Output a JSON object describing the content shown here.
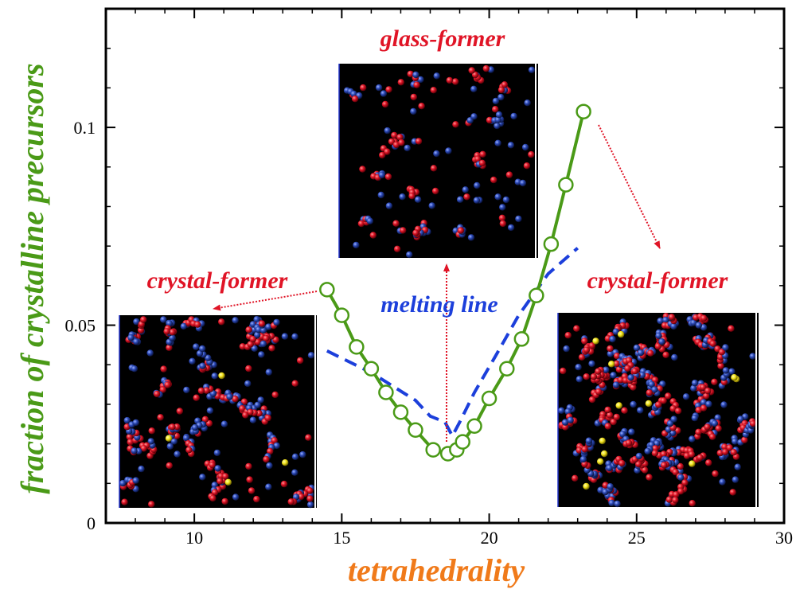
{
  "chart_data": {
    "type": "line",
    "xlabel": "tetrahedrality",
    "ylabel": "fraction of crystalline precursors",
    "xlim": [
      7,
      30
    ],
    "ylim": [
      0,
      0.13
    ],
    "x_ticks": [
      10,
      15,
      20,
      25,
      30
    ],
    "y_ticks": [
      0,
      0.05,
      0.1
    ],
    "x_tick_labels": [
      "10",
      "15",
      "20",
      "25",
      "30"
    ],
    "y_tick_labels": [
      "0",
      "0.05",
      "0.1"
    ],
    "grid": false,
    "series": [
      {
        "style": "solid line with open circle markers",
        "color": "#4a9a17",
        "points": [
          {
            "x": 14.5,
            "y": 0.059
          },
          {
            "x": 15.0,
            "y": 0.0525
          },
          {
            "x": 15.5,
            "y": 0.0445
          },
          {
            "x": 16.0,
            "y": 0.039
          },
          {
            "x": 16.5,
            "y": 0.033
          },
          {
            "x": 17.0,
            "y": 0.028
          },
          {
            "x": 17.5,
            "y": 0.0235
          },
          {
            "x": 18.1,
            "y": 0.0185
          },
          {
            "x": 18.6,
            "y": 0.0175
          },
          {
            "x": 18.9,
            "y": 0.0185
          },
          {
            "x": 19.1,
            "y": 0.0205
          },
          {
            "x": 19.5,
            "y": 0.0245
          },
          {
            "x": 20.0,
            "y": 0.0315
          },
          {
            "x": 20.6,
            "y": 0.039
          },
          {
            "x": 21.1,
            "y": 0.0465
          },
          {
            "x": 21.6,
            "y": 0.0575
          },
          {
            "x": 22.1,
            "y": 0.0705
          },
          {
            "x": 22.6,
            "y": 0.0855
          },
          {
            "x": 23.2,
            "y": 0.104
          }
        ]
      },
      {
        "style": "dashed line",
        "color": "#1c3fdb",
        "points": [
          {
            "x": 14.5,
            "y": 0.0435
          },
          {
            "x": 16.0,
            "y": 0.038
          },
          {
            "x": 17.5,
            "y": 0.031
          },
          {
            "x": 18.0,
            "y": 0.027
          },
          {
            "x": 18.5,
            "y": 0.0255
          },
          {
            "x": 18.75,
            "y": 0.022
          },
          {
            "x": 19.0,
            "y": 0.0255
          },
          {
            "x": 19.5,
            "y": 0.033
          },
          {
            "x": 20.2,
            "y": 0.042
          },
          {
            "x": 21.0,
            "y": 0.0525
          },
          {
            "x": 22.0,
            "y": 0.063
          },
          {
            "x": 23.0,
            "y": 0.0695
          }
        ]
      }
    ],
    "annotations": {
      "glass_former": "glass-former",
      "crystal_former_left": "crystal-former",
      "crystal_former_right": "crystal-former",
      "melting_line": "melting line"
    }
  },
  "colors": {
    "green": "#4a9a17",
    "blue": "#1c3fdb",
    "red": "#e01426",
    "orange": "#f07a1a"
  }
}
